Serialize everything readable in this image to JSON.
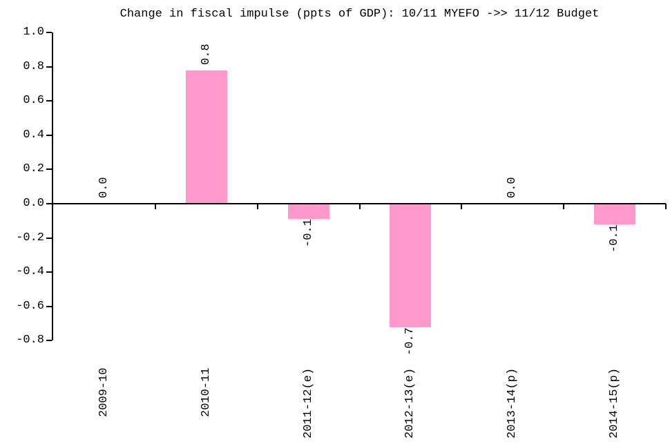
{
  "title": "Change in fiscal impulse (ppts of GDP): 10/11 MYEFO ->> 11/12 Budget",
  "chart_data": {
    "type": "bar",
    "title": "Change in fiscal impulse (ppts of GDP): 10/11 MYEFO ->> 11/12 Budget",
    "xlabel": "",
    "ylabel": "",
    "categories": [
      "2009-10",
      "2010-11",
      "2011-12(e)",
      "2012-13(e)",
      "2013-14(p)",
      "2014-15(p)"
    ],
    "values": [
      0.0,
      0.8,
      -0.1,
      -0.7,
      0.0,
      -0.1
    ],
    "bar_labels": [
      "0.0",
      "0.8",
      "-0.1",
      "-0.7",
      "0.0",
      "-0.1"
    ],
    "values_precise": [
      0.0,
      0.78,
      -0.09,
      -0.72,
      0.0,
      -0.12
    ],
    "ylim": [
      -0.8,
      1.0
    ],
    "ytick_step": 0.2,
    "ytick_labels": [
      "1.0",
      "0.8",
      "0.6",
      "0.4",
      "0.2",
      "0.0",
      "-0.2",
      "-0.4",
      "-0.6",
      "-0.8"
    ],
    "grid": false,
    "legend": null,
    "bar_color": "#FF99CC",
    "axis_color": "#000000",
    "background_color": "#FFFFFF",
    "text_color": "#000000"
  }
}
